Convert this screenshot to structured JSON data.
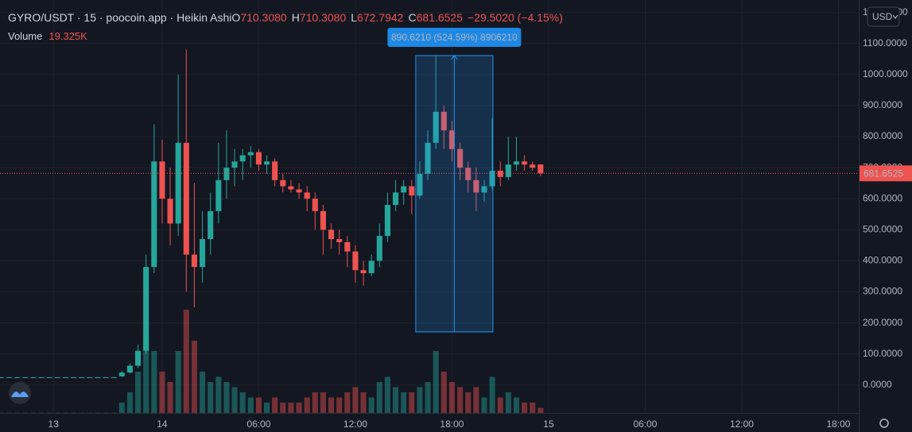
{
  "header": {
    "title": "GYRO/USDT · 15 · poocoin.app · Heikin Ashi",
    "ohlc": [
      {
        "key": "O",
        "value": "710.3080"
      },
      {
        "key": "H",
        "value": "710.3080"
      },
      {
        "key": "L",
        "value": "672.7942"
      },
      {
        "key": "C",
        "value": "681.6525"
      }
    ],
    "change": "−29.5020 (−4.15%)",
    "volume_label": "Volume",
    "volume_value": "19.325K",
    "currency": "USD"
  },
  "chart_data": {
    "type": "candlestick",
    "x": [
      -10,
      -9.5,
      -9,
      -8.5,
      -8,
      -7.5,
      -7,
      -6.5,
      -6,
      -5.5,
      -5,
      -4.5,
      -4,
      -3.5,
      -3,
      -2.5,
      -2,
      -1.5,
      -1,
      -0.5,
      0,
      0.5,
      1,
      1.5,
      2,
      2.5,
      3,
      3.5,
      4,
      4.5,
      5,
      5.5,
      6,
      6.5,
      7,
      7.5,
      8,
      8.5,
      9,
      9.5,
      10,
      10.5,
      11,
      11.5,
      12,
      12.5,
      13,
      13.5,
      14,
      14.5,
      15,
      15.5,
      16,
      16.5,
      17,
      17.5,
      18,
      18.5,
      19,
      19.5,
      20,
      20.5,
      21,
      21.5,
      22,
      22.5,
      23,
      23.5
    ],
    "open": [
      24,
      24,
      24,
      24,
      24,
      24,
      24,
      24,
      24,
      24,
      24,
      24,
      24,
      24,
      24,
      28,
      40,
      62,
      110,
      380,
      720,
      600,
      520,
      780,
      420,
      380,
      470,
      560,
      660,
      700,
      720,
      740,
      750,
      710,
      720,
      660,
      640,
      630,
      620,
      600,
      560,
      500,
      470,
      460,
      430,
      370,
      360,
      400,
      480,
      580,
      620,
      640,
      610,
      680,
      780,
      880,
      820,
      760,
      700,
      660,
      620,
      640,
      690,
      670,
      710,
      720,
      710,
      710.308
    ],
    "high": [
      26,
      26,
      26,
      26,
      26,
      26,
      26,
      26,
      26,
      26,
      26,
      26,
      26,
      26,
      26,
      45,
      70,
      130,
      420,
      840,
      790,
      700,
      1000,
      1080,
      650,
      560,
      620,
      780,
      820,
      760,
      760,
      770,
      760,
      740,
      730,
      680,
      660,
      650,
      640,
      620,
      580,
      520,
      500,
      480,
      450,
      400,
      420,
      520,
      620,
      660,
      660,
      660,
      720,
      820,
      1060,
      900,
      850,
      780,
      720,
      700,
      660,
      860,
      720,
      800,
      800,
      740,
      720,
      710.308
    ],
    "low": [
      23,
      23,
      23,
      23,
      23,
      23,
      23,
      23,
      23,
      23,
      23,
      23,
      23,
      23,
      23,
      26,
      38,
      55,
      100,
      360,
      520,
      450,
      480,
      300,
      250,
      330,
      420,
      520,
      600,
      640,
      660,
      700,
      690,
      680,
      640,
      620,
      620,
      600,
      560,
      500,
      420,
      440,
      420,
      380,
      330,
      320,
      350,
      380,
      460,
      560,
      580,
      550,
      600,
      660,
      760,
      760,
      720,
      660,
      620,
      560,
      590,
      630,
      640,
      660,
      690,
      690,
      690,
      672.7942
    ],
    "close": [
      25,
      25,
      25,
      25,
      25,
      25,
      25,
      25,
      25,
      25,
      25,
      25,
      25,
      25,
      25,
      40,
      62,
      110,
      380,
      720,
      600,
      520,
      780,
      420,
      380,
      470,
      560,
      660,
      700,
      720,
      740,
      750,
      710,
      720,
      660,
      640,
      630,
      620,
      600,
      560,
      500,
      470,
      460,
      430,
      370,
      360,
      400,
      480,
      580,
      620,
      640,
      610,
      680,
      780,
      880,
      820,
      760,
      700,
      660,
      620,
      640,
      690,
      670,
      710,
      720,
      710,
      700,
      681.6525
    ],
    "volume": [
      1000,
      1000,
      1000,
      1000,
      1000,
      1000,
      1000,
      1000,
      1000,
      1000,
      1000,
      1000,
      1000,
      1000,
      1000,
      40000,
      80000,
      160000,
      300000,
      240000,
      160000,
      120000,
      240000,
      400000,
      280000,
      160000,
      120000,
      140000,
      120000,
      100000,
      80000,
      60000,
      60000,
      40000,
      60000,
      40000,
      40000,
      40000,
      60000,
      80000,
      80000,
      60000,
      60000,
      80000,
      100000,
      80000,
      60000,
      120000,
      140000,
      100000,
      80000,
      80000,
      100000,
      120000,
      240000,
      160000,
      120000,
      100000,
      80000,
      100000,
      60000,
      140000,
      60000,
      80000,
      60000,
      40000,
      40000,
      19325
    ],
    "up_color": "#26a69a",
    "down_color": "#ef5350",
    "xlim": [
      -10.07,
      43.26
    ],
    "ylim": [
      -90,
      1240
    ],
    "xticks": [
      {
        "value": -6.75,
        "label": "13"
      },
      {
        "value": 0,
        "label": "14"
      },
      {
        "value": 6,
        "label": "06:00"
      },
      {
        "value": 12,
        "label": "12:00"
      },
      {
        "value": 18,
        "label": "18:00"
      },
      {
        "value": 24,
        "label": "15"
      },
      {
        "value": 30,
        "label": "06:00"
      },
      {
        "value": 36,
        "label": "12:00"
      },
      {
        "value": 42,
        "label": "18:00"
      }
    ],
    "yticks": [
      {
        "value": 0,
        "label": "0.0000"
      },
      {
        "value": 100,
        "label": "100.0000"
      },
      {
        "value": 200,
        "label": "200.0000"
      },
      {
        "value": 300,
        "label": "300.0000"
      },
      {
        "value": 400,
        "label": "400.0000"
      },
      {
        "value": 500,
        "label": "500.0000"
      },
      {
        "value": 600,
        "label": "600.0000"
      },
      {
        "value": 700,
        "label": "700.0000"
      },
      {
        "value": 800,
        "label": "800.0000"
      },
      {
        "value": 900,
        "label": "900.0000"
      },
      {
        "value": 1000,
        "label": "1000.0000"
      },
      {
        "value": 1100,
        "label": "1100.0000"
      },
      {
        "value": 1200,
        "label": "1200.0000"
      }
    ],
    "grid": true,
    "last_price": 681.6525,
    "measure": {
      "label": "890.6210 (524.59%) 8906210",
      "x": [
        15.75,
        20.54
      ],
      "y": [
        171,
        1061
      ]
    }
  }
}
